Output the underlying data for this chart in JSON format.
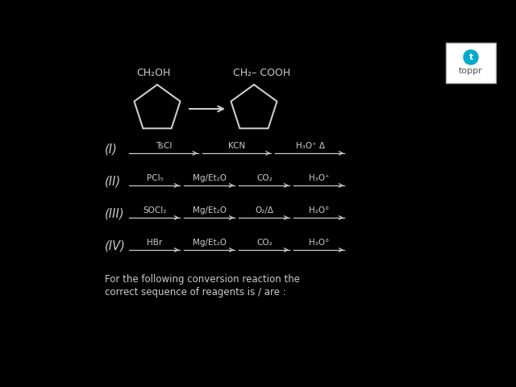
{
  "background_color": "#000000",
  "text_color": "#cccccc",
  "fig_width": 6.4,
  "fig_height": 4.8,
  "dpi": 100,
  "rows": [
    {
      "label": "(I)",
      "steps": [
        "TsCl",
        "KCN",
        "H₃O⁺ Δ"
      ]
    },
    {
      "label": "(II)",
      "steps": [
        "PCl₅",
        "Mg/Et₂O",
        "CO₂",
        "H₃O⁺"
      ]
    },
    {
      "label": "(III)",
      "steps": [
        "SOCl₂",
        "Mg/Et₂O",
        "O₂/Δ",
        "H₂O°"
      ]
    },
    {
      "label": "(IV)",
      "steps": [
        "HBr",
        "Mg/Et₂O",
        "CO₂",
        "H₃O°"
      ]
    }
  ],
  "footer_line1": "For the following conversion reaction the",
  "footer_line2": "correct sequence of reagents is / are :",
  "cyclopentane_left_label": "CH₂OH",
  "cyclopentane_right_label": "CH₂– COOH",
  "toppr_icon_color": "#00aacc"
}
